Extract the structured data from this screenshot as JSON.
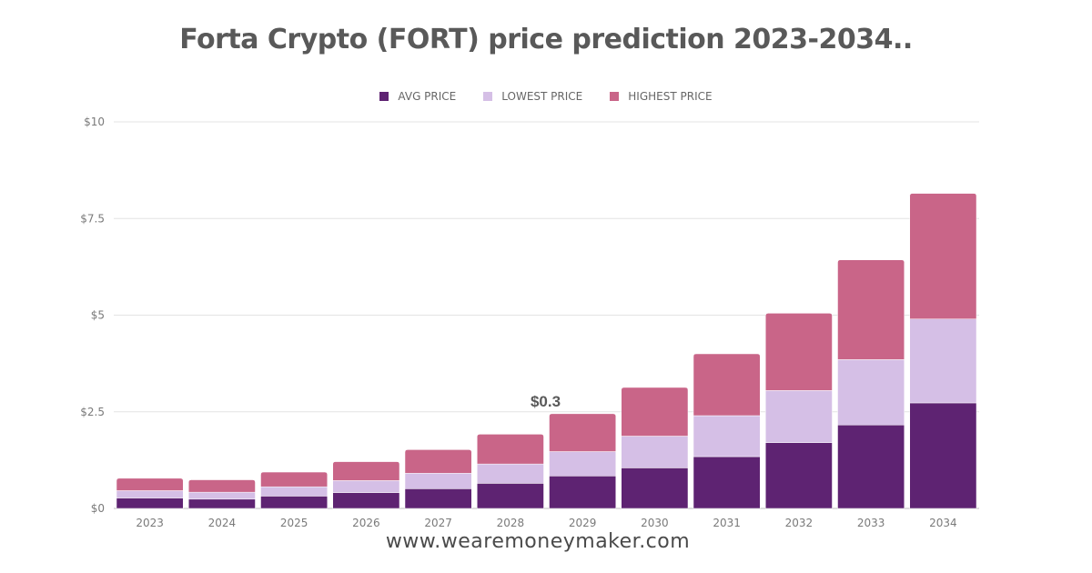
{
  "chart_data": {
    "type": "bar",
    "stacked": true,
    "title": "Forta Crypto (FORT) price prediction 2023-2034..",
    "xlabel": "",
    "ylabel": "",
    "categories": [
      "2023",
      "2024",
      "2025",
      "2026",
      "2027",
      "2028",
      "2029",
      "2030",
      "2031",
      "2032",
      "2033",
      "2034"
    ],
    "series": [
      {
        "name": "AVG PRICE",
        "color": "#5e2372",
        "values": [
          0.27,
          0.24,
          0.32,
          0.41,
          0.51,
          0.65,
          0.84,
          1.05,
          1.34,
          1.7,
          2.16,
          2.73
        ]
      },
      {
        "name": "LOWEST PRICE",
        "color": "#d5bfe6",
        "values": [
          0.19,
          0.18,
          0.24,
          0.31,
          0.4,
          0.5,
          0.63,
          0.82,
          1.06,
          1.35,
          1.69,
          2.17
        ]
      },
      {
        "name": "HIGHEST PRICE",
        "color": "#c96588",
        "values": [
          0.32,
          0.32,
          0.38,
          0.49,
          0.61,
          0.77,
          0.98,
          1.26,
          1.6,
          2.0,
          2.58,
          3.25
        ]
      }
    ],
    "ylim": [
      0,
      10
    ],
    "yticks": [
      {
        "value": 0,
        "label": "$0"
      },
      {
        "value": 2.5,
        "label": "$2.5"
      },
      {
        "value": 5,
        "label": "$5"
      },
      {
        "value": 7.5,
        "label": "$7.5"
      },
      {
        "value": 10,
        "label": "$10"
      }
    ],
    "grid": true,
    "legend_position": "top-center",
    "annotations": [
      {
        "category": "2029",
        "text": "$0.3"
      }
    ]
  },
  "footer": {
    "url": "www.wearemoneymaker.com"
  }
}
